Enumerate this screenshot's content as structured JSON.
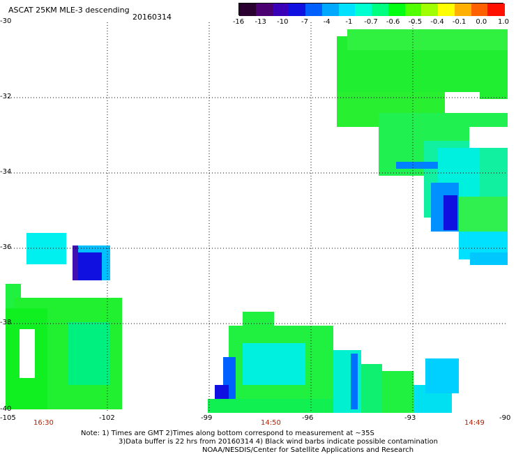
{
  "header": {
    "title": "ASCAT 25KM MLE-3 descending",
    "date": "20160314"
  },
  "colorbar": {
    "labels": [
      "-16",
      "-13",
      "-10",
      "-7",
      "-4",
      "-1",
      "-0.7",
      "-0.6",
      "-0.5",
      "-0.4",
      "-0.1",
      "0.0",
      "1.0"
    ],
    "colors": [
      "#2a0030",
      "#4a0070",
      "#3a00b8",
      "#1010e0",
      "#0060ff",
      "#00a8ff",
      "#00e0ff",
      "#00ffd0",
      "#00ff80",
      "#00ff10",
      "#50ff00",
      "#a0ff00",
      "#ffff00",
      "#ffb000",
      "#ff6000",
      "#ff1000"
    ]
  },
  "axes": {
    "x_ticks": [
      "-105",
      "-102",
      "-99",
      "-96",
      "-93",
      "-90"
    ],
    "y_ticks": [
      "-30",
      "-32",
      "-34",
      "-36",
      "-38",
      "-40"
    ]
  },
  "times": [
    "16:30",
    "14:50",
    "14:49"
  ],
  "notes": {
    "line1": "Note: 1) Times are GMT 2)Times along bottom correspond to measurement at ~35S",
    "line2": "3)Data buffer is 22 hrs from 20160314 4) Black wind barbs indicate possible contamination",
    "line3": "NOAA/NESDIS/Center for Satellite Applications and Research"
  }
}
